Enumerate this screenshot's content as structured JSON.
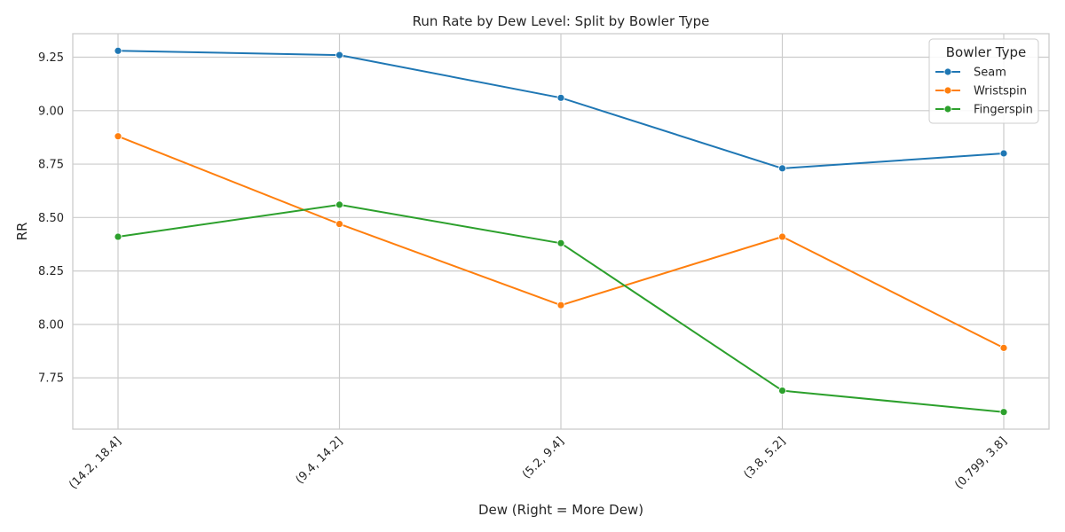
{
  "chart_data": {
    "type": "line",
    "title": "Run Rate by Dew Level: Split by Bowler Type",
    "xlabel": "Dew (Right = More Dew)",
    "ylabel": "RR",
    "categories": [
      "(14.2, 18.4]",
      "(9.4, 14.2]",
      "(5.2, 9.4]",
      "(3.8, 5.2]",
      "(0.799, 3.8]"
    ],
    "ylim": [
      7.51,
      9.36
    ],
    "yticks": [
      7.75,
      8.0,
      8.25,
      8.5,
      8.75,
      9.0,
      9.25
    ],
    "ytick_labels": [
      "7.75",
      "8.00",
      "8.25",
      "8.50",
      "8.75",
      "9.00",
      "9.25"
    ],
    "grid": true,
    "legend": {
      "title": "Bowler Type",
      "position": "top-right"
    },
    "series": [
      {
        "name": "Seam",
        "color": "#1f77b4",
        "values": [
          9.28,
          9.26,
          9.06,
          8.73,
          8.8
        ]
      },
      {
        "name": "Wristspin",
        "color": "#ff7f0e",
        "values": [
          8.88,
          8.47,
          8.09,
          8.41,
          7.89
        ]
      },
      {
        "name": "Fingerspin",
        "color": "#2ca02c",
        "values": [
          8.41,
          8.56,
          8.38,
          7.69,
          7.59
        ]
      }
    ]
  }
}
